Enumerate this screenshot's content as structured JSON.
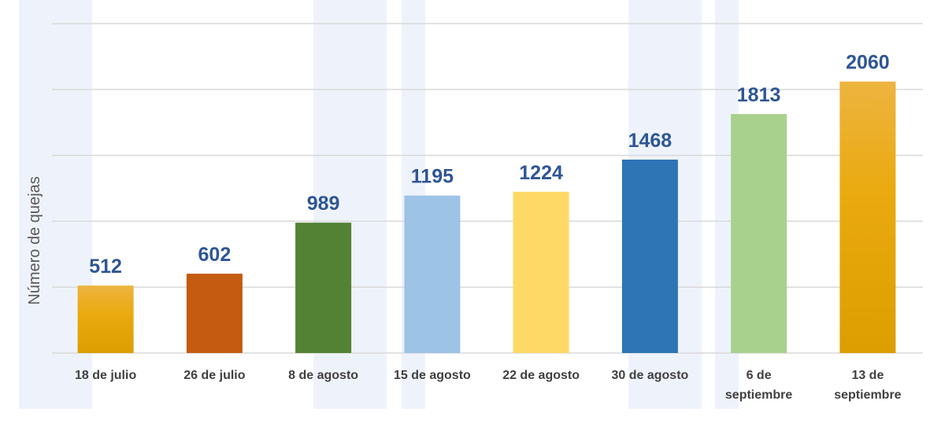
{
  "chart_data": {
    "type": "bar",
    "ylabel": "Número de quejas",
    "ylim": [
      0,
      2500
    ],
    "y_grid_step": 500,
    "grid": "horizontal",
    "show_y_tick_labels": false,
    "categories": [
      [
        "18 de julio"
      ],
      [
        "26 de julio"
      ],
      [
        "8 de agosto"
      ],
      [
        "15 de agosto"
      ],
      [
        "22 de agosto"
      ],
      [
        "30 de agosto"
      ],
      [
        "6 de",
        "septiembre"
      ],
      [
        "13 de",
        "septiembre"
      ]
    ],
    "values": [
      512,
      602,
      989,
      1195,
      1224,
      1468,
      1813,
      2060
    ],
    "bar_colors": [
      {
        "type": "gradient",
        "top": "#edb440",
        "bottom": "#e7a300"
      },
      {
        "type": "solid",
        "color": "#c55a11"
      },
      {
        "type": "solid",
        "color": "#548235"
      },
      {
        "type": "solid",
        "color": "#9dc3e6"
      },
      {
        "type": "solid",
        "color": "#ffd966"
      },
      {
        "type": "solid",
        "color": "#2e75b6"
      },
      {
        "type": "solid",
        "color": "#a9d18e"
      },
      {
        "type": "gradient",
        "top": "#edb440",
        "bottom": "#e7a300"
      }
    ],
    "value_label_color": "#2e5694"
  }
}
